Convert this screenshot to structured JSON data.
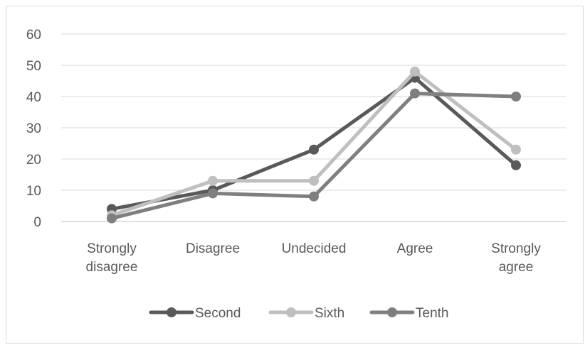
{
  "chart_data": {
    "type": "line",
    "title": "",
    "xlabel": "",
    "ylabel": "",
    "categories": [
      [
        "Strongly",
        "disagree"
      ],
      [
        "Disagree"
      ],
      [
        "Undecided"
      ],
      [
        "Agree"
      ],
      [
        "Strongly",
        "agree"
      ]
    ],
    "ylim": [
      0,
      60
    ],
    "yticks": [
      "0",
      "10",
      "20",
      "30",
      "40",
      "50",
      "60"
    ],
    "grid": true,
    "legend": "bottom",
    "series": [
      {
        "name": "Second",
        "color": "#595959",
        "values": [
          4,
          10,
          23,
          46,
          18
        ]
      },
      {
        "name": "Sixth",
        "color": "#bfbfbf",
        "values": [
          2,
          13,
          13,
          48,
          23
        ]
      },
      {
        "name": "Tenth",
        "color": "#7f7f7f",
        "values": [
          1,
          9,
          8,
          41,
          40
        ]
      }
    ]
  }
}
